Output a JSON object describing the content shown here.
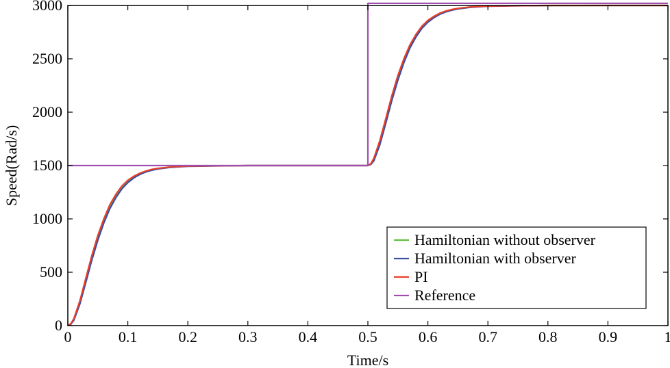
{
  "chart_data": {
    "type": "line",
    "title": "",
    "xlabel": "Time/s",
    "ylabel": "Speed(Rad/s)",
    "xlim": [
      0,
      1
    ],
    "ylim": [
      0,
      3000
    ],
    "xticks": [
      "0",
      "0.1",
      "0.2",
      "0.3",
      "0.4",
      "0.5",
      "0.6",
      "0.7",
      "0.8",
      "0.9",
      "1"
    ],
    "yticks": [
      "0",
      "500",
      "1000",
      "1500",
      "2000",
      "2500",
      "3000"
    ],
    "grid": false,
    "legend_position": "bottom-right",
    "series": [
      {
        "name": "Hamiltonian without observer",
        "color": "#5fbf3f",
        "x": [
          0,
          0.005,
          0.01,
          0.02,
          0.03,
          0.04,
          0.05,
          0.06,
          0.07,
          0.08,
          0.09,
          0.1,
          0.11,
          0.12,
          0.13,
          0.14,
          0.15,
          0.17,
          0.2,
          0.25,
          0.3,
          0.4,
          0.5,
          0.505,
          0.51,
          0.52,
          0.53,
          0.54,
          0.55,
          0.56,
          0.57,
          0.58,
          0.59,
          0.6,
          0.61,
          0.62,
          0.63,
          0.64,
          0.65,
          0.67,
          0.7,
          0.75,
          0.8,
          0.9,
          1.0
        ],
        "y": [
          0,
          15,
          60,
          220,
          430,
          640,
          830,
          990,
          1120,
          1220,
          1300,
          1355,
          1395,
          1425,
          1447,
          1462,
          1472,
          1485,
          1494,
          1498,
          1500,
          1500,
          1500,
          1515,
          1560,
          1720,
          1930,
          2140,
          2330,
          2490,
          2620,
          2720,
          2800,
          2855,
          2895,
          2925,
          2947,
          2962,
          2972,
          2985,
          2994,
          2998,
          3000,
          3000,
          3000
        ]
      },
      {
        "name": "Hamiltonian with observer",
        "color": "#3a4ea3",
        "x": [
          0,
          0.005,
          0.01,
          0.02,
          0.03,
          0.04,
          0.05,
          0.06,
          0.07,
          0.08,
          0.09,
          0.1,
          0.11,
          0.12,
          0.13,
          0.14,
          0.15,
          0.17,
          0.2,
          0.25,
          0.3,
          0.4,
          0.5,
          0.505,
          0.51,
          0.52,
          0.53,
          0.54,
          0.55,
          0.56,
          0.57,
          0.58,
          0.59,
          0.6,
          0.61,
          0.62,
          0.63,
          0.64,
          0.65,
          0.67,
          0.7,
          0.75,
          0.8,
          0.9,
          1.0
        ],
        "y": [
          0,
          12,
          50,
          200,
          405,
          612,
          800,
          962,
          1095,
          1198,
          1280,
          1340,
          1384,
          1416,
          1440,
          1456,
          1468,
          1482,
          1492,
          1497,
          1500,
          1500,
          1500,
          1510,
          1545,
          1695,
          1900,
          2110,
          2300,
          2465,
          2600,
          2703,
          2785,
          2843,
          2885,
          2917,
          2940,
          2956,
          2968,
          2982,
          2992,
          2997,
          2999,
          3000,
          3000
        ]
      },
      {
        "name": "PI",
        "color": "#e8402a",
        "x": [
          0,
          0.005,
          0.01,
          0.02,
          0.03,
          0.04,
          0.05,
          0.06,
          0.07,
          0.08,
          0.09,
          0.1,
          0.11,
          0.12,
          0.13,
          0.14,
          0.15,
          0.17,
          0.2,
          0.25,
          0.3,
          0.4,
          0.5,
          0.505,
          0.51,
          0.52,
          0.53,
          0.54,
          0.55,
          0.56,
          0.57,
          0.58,
          0.59,
          0.6,
          0.61,
          0.62,
          0.63,
          0.64,
          0.65,
          0.67,
          0.7,
          0.75,
          0.8,
          0.9,
          1.0
        ],
        "y": [
          0,
          18,
          65,
          230,
          445,
          655,
          845,
          1002,
          1132,
          1230,
          1308,
          1362,
          1400,
          1428,
          1449,
          1464,
          1474,
          1486,
          1495,
          1498,
          1500,
          1500,
          1500,
          1518,
          1570,
          1735,
          1945,
          2155,
          2345,
          2502,
          2630,
          2728,
          2806,
          2860,
          2899,
          2928,
          2949,
          2963,
          2973,
          2986,
          2994,
          2998,
          3000,
          3000,
          3000
        ]
      },
      {
        "name": "Reference",
        "color": "#a04fb0",
        "x": [
          0,
          0.5,
          0.5,
          1.0
        ],
        "y": [
          1500,
          1500,
          3020,
          3020
        ]
      }
    ]
  }
}
